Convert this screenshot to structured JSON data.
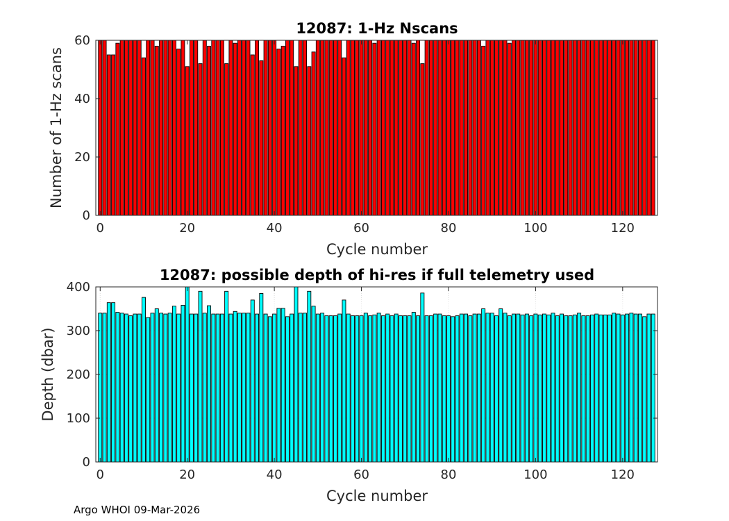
{
  "chart_data": [
    {
      "type": "bar",
      "title": "12087: 1-Hz Nscans",
      "xlabel": "Cycle number",
      "ylabel": "Number of 1-Hz scans",
      "xlim": [
        -1,
        128
      ],
      "ylim": [
        0,
        60
      ],
      "xticks": [
        0,
        20,
        40,
        60,
        80,
        100,
        120
      ],
      "yticks": [
        0,
        20,
        40,
        60
      ],
      "bar_color": "#ff0000",
      "edge_color": "#000000",
      "grid": false,
      "x": [
        0,
        1,
        2,
        3,
        4,
        5,
        6,
        7,
        8,
        9,
        10,
        11,
        12,
        13,
        14,
        15,
        16,
        17,
        18,
        19,
        20,
        21,
        22,
        23,
        24,
        25,
        26,
        27,
        28,
        29,
        30,
        31,
        32,
        33,
        34,
        35,
        36,
        37,
        38,
        39,
        40,
        41,
        42,
        43,
        44,
        45,
        46,
        47,
        48,
        49,
        50,
        51,
        52,
        53,
        54,
        55,
        56,
        57,
        58,
        59,
        60,
        61,
        62,
        63,
        64,
        65,
        66,
        67,
        68,
        69,
        70,
        71,
        72,
        73,
        74,
        75,
        76,
        77,
        78,
        79,
        80,
        81,
        82,
        83,
        84,
        85,
        86,
        87,
        88,
        89,
        90,
        91,
        92,
        93,
        94,
        95,
        96,
        97,
        98,
        99,
        100,
        101,
        102,
        103,
        104,
        105,
        106,
        107,
        108,
        109,
        110,
        111,
        112,
        113,
        114,
        115,
        116,
        117,
        118,
        119,
        120,
        121,
        122,
        123,
        124,
        125,
        126,
        127
      ],
      "values": [
        60,
        60,
        55,
        55,
        59,
        60,
        60,
        60,
        60,
        60,
        54,
        60,
        60,
        58,
        60,
        60,
        60,
        60,
        57,
        60,
        51,
        60,
        60,
        52,
        60,
        58,
        60,
        60,
        60,
        52,
        60,
        59,
        60,
        60,
        60,
        55,
        60,
        53,
        60,
        60,
        60,
        57,
        58,
        60,
        60,
        51,
        60,
        60,
        51,
        56,
        60,
        60,
        60,
        60,
        60,
        60,
        54,
        60,
        60,
        60,
        60,
        60,
        60,
        59,
        60,
        60,
        60,
        60,
        60,
        60,
        60,
        60,
        59,
        60,
        52,
        60,
        60,
        60,
        60,
        60,
        60,
        60,
        60,
        60,
        60,
        60,
        60,
        60,
        58,
        60,
        60,
        60,
        60,
        60,
        59,
        60,
        60,
        60,
        60,
        60,
        60,
        60,
        60,
        60,
        60,
        60,
        60,
        60,
        60,
        60,
        60,
        60,
        60,
        60,
        60,
        60,
        60,
        60,
        60,
        60,
        60,
        60,
        60,
        60,
        60,
        60,
        60,
        60
      ]
    },
    {
      "type": "bar",
      "title": "12087: possible depth of hi-res if full telemetry used",
      "xlabel": "Cycle number",
      "ylabel": "Depth (dbar)",
      "xlim": [
        -1,
        128
      ],
      "ylim": [
        0,
        400
      ],
      "xticks": [
        0,
        20,
        40,
        60,
        80,
        100,
        120
      ],
      "yticks": [
        0,
        100,
        200,
        300,
        400
      ],
      "bar_color": "#00ffff",
      "edge_color": "#000000",
      "grid": true,
      "x": [
        0,
        1,
        2,
        3,
        4,
        5,
        6,
        7,
        8,
        9,
        10,
        11,
        12,
        13,
        14,
        15,
        16,
        17,
        18,
        19,
        20,
        21,
        22,
        23,
        24,
        25,
        26,
        27,
        28,
        29,
        30,
        31,
        32,
        33,
        34,
        35,
        36,
        37,
        38,
        39,
        40,
        41,
        42,
        43,
        44,
        45,
        46,
        47,
        48,
        49,
        50,
        51,
        52,
        53,
        54,
        55,
        56,
        57,
        58,
        59,
        60,
        61,
        62,
        63,
        64,
        65,
        66,
        67,
        68,
        69,
        70,
        71,
        72,
        73,
        74,
        75,
        76,
        77,
        78,
        79,
        80,
        81,
        82,
        83,
        84,
        85,
        86,
        87,
        88,
        89,
        90,
        91,
        92,
        93,
        94,
        95,
        96,
        97,
        98,
        99,
        100,
        101,
        102,
        103,
        104,
        105,
        106,
        107,
        108,
        109,
        110,
        111,
        112,
        113,
        114,
        115,
        116,
        117,
        118,
        119,
        120,
        121,
        122,
        123,
        124,
        125,
        126,
        127
      ],
      "values": [
        340,
        340,
        364,
        364,
        342,
        340,
        338,
        334,
        338,
        338,
        376,
        330,
        340,
        350,
        340,
        338,
        340,
        356,
        338,
        358,
        400,
        338,
        338,
        390,
        340,
        357,
        338,
        338,
        338,
        390,
        338,
        344,
        340,
        340,
        340,
        370,
        338,
        385,
        338,
        332,
        338,
        351,
        351,
        332,
        338,
        400,
        340,
        340,
        390,
        356,
        338,
        340,
        334,
        334,
        334,
        338,
        370,
        338,
        334,
        334,
        334,
        340,
        334,
        336,
        340,
        334,
        338,
        334,
        338,
        334,
        334,
        334,
        342,
        334,
        386,
        334,
        334,
        338,
        338,
        334,
        334,
        332,
        334,
        338,
        338,
        334,
        338,
        338,
        350,
        340,
        340,
        334,
        350,
        340,
        334,
        338,
        338,
        336,
        338,
        334,
        338,
        336,
        338,
        336,
        340,
        334,
        338,
        334,
        334,
        336,
        340,
        334,
        334,
        336,
        338,
        336,
        336,
        336,
        340,
        338,
        336,
        338,
        340,
        338,
        338,
        332,
        338,
        338
      ]
    }
  ],
  "footer": {
    "text": "Argo WHOI 09-Mar-2026"
  }
}
